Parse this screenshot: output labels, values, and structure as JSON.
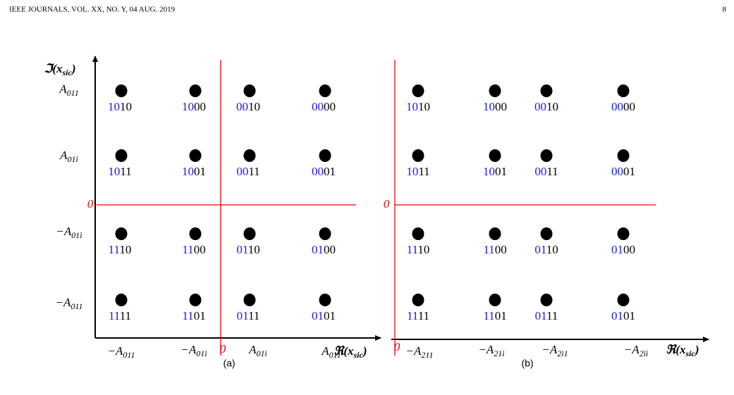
{
  "header": {
    "left": "IEEE JOURNALS, VOL. XX, NO. Y, 04 AUG. 2019",
    "page": "8"
  },
  "panels": [
    {
      "caption": "(a)",
      "y_axis_label": {
        "text": "ℑ(x",
        "sub": "sic",
        "tail": ")"
      },
      "x_axis_label": {
        "text": "ℜ(x",
        "sub": "sic",
        "tail": ")"
      },
      "y_ticks": [
        {
          "text": "A",
          "sub": "011"
        },
        {
          "text": "A",
          "sub": "01ì"
        },
        {
          "text": "0"
        },
        {
          "text": "−A",
          "sub": "01ì"
        },
        {
          "text": "−A",
          "sub": "011"
        }
      ],
      "x_ticks": [
        {
          "text": "−A",
          "sub": "011"
        },
        {
          "text": "−A",
          "sub": "01ì"
        },
        {
          "text": "0"
        },
        {
          "text": "A",
          "sub": "01ì"
        },
        {
          "text": "A",
          "sub": "011"
        }
      ],
      "points": [
        [
          {
            "blue": "10",
            "black": "10"
          },
          {
            "blue": "10",
            "black": "00"
          },
          {
            "blue": "00",
            "black": "10"
          },
          {
            "blue": "00",
            "black": "00"
          }
        ],
        [
          {
            "blue": "10",
            "black": "11"
          },
          {
            "blue": "10",
            "black": "01"
          },
          {
            "blue": "00",
            "black": "11"
          },
          {
            "blue": "00",
            "black": "01"
          }
        ],
        [
          {
            "blue": "11",
            "black": "10"
          },
          {
            "blue": "11",
            "black": "00"
          },
          {
            "blue": "01",
            "black": "10"
          },
          {
            "blue": "01",
            "black": "00"
          }
        ],
        [
          {
            "blue": "11",
            "black": "11"
          },
          {
            "blue": "11",
            "black": "01"
          },
          {
            "blue": "01",
            "black": "11"
          },
          {
            "blue": "01",
            "black": "01"
          }
        ]
      ]
    },
    {
      "caption": "(b)",
      "x_axis_label": {
        "text": "ℜ(x",
        "sub": "sic",
        "tail": ")"
      },
      "y_ticks": [
        {
          "text": "0"
        }
      ],
      "x_ticks": [
        {
          "text": "0"
        },
        {
          "text": "−A",
          "sub": "211"
        },
        {
          "text": "−A",
          "sub": "21ì"
        },
        {
          "text": "−A",
          "sub": "2ì1"
        },
        {
          "text": "−A",
          "sub": "2ìì"
        }
      ],
      "points": [
        [
          {
            "blue": "10",
            "black": "10"
          },
          {
            "blue": "10",
            "black": "00"
          },
          {
            "blue": "00",
            "black": "10"
          },
          {
            "blue": "00",
            "black": "00"
          }
        ],
        [
          {
            "blue": "10",
            "black": "11"
          },
          {
            "blue": "10",
            "black": "01"
          },
          {
            "blue": "00",
            "black": "11"
          },
          {
            "blue": "00",
            "black": "01"
          }
        ],
        [
          {
            "blue": "11",
            "black": "10"
          },
          {
            "blue": "11",
            "black": "00"
          },
          {
            "blue": "01",
            "black": "10"
          },
          {
            "blue": "01",
            "black": "00"
          }
        ],
        [
          {
            "blue": "11",
            "black": "11"
          },
          {
            "blue": "11",
            "black": "01"
          },
          {
            "blue": "01",
            "black": "11"
          },
          {
            "blue": "01",
            "black": "01"
          }
        ]
      ]
    }
  ]
}
